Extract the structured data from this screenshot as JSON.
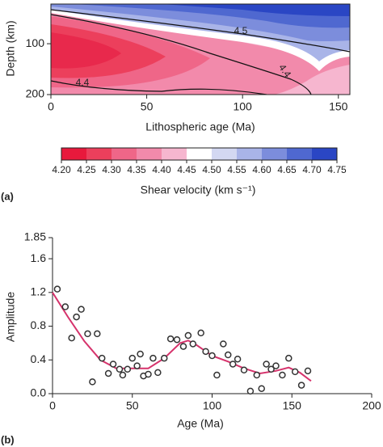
{
  "chart_data": [
    {
      "type": "contour",
      "panel_label": "(a)",
      "xlabel": "Lithospheric age (Ma)",
      "ylabel": "Depth (km)",
      "xlim": [
        0,
        156
      ],
      "xticks": [
        0,
        50,
        100,
        150
      ],
      "ylim": [
        200,
        22
      ],
      "yticks": [
        100,
        200
      ],
      "contour_labels": [
        "4.5",
        "4.4",
        "4.4"
      ],
      "colorbar": {
        "label": "Shear velocity (km s⁻¹)",
        "ticks": [
          {
            "value": 4.2,
            "label": "4.20"
          },
          {
            "value": 4.25,
            "label": "4.25"
          },
          {
            "value": 4.3,
            "label": "4.30"
          },
          {
            "value": 4.35,
            "label": "4.35"
          },
          {
            "value": 4.4,
            "label": "4.40"
          },
          {
            "value": 4.45,
            "label": "4.45"
          },
          {
            "value": 4.5,
            "label": "4.50"
          },
          {
            "value": 4.55,
            "label": "4.55"
          },
          {
            "value": 4.6,
            "label": "4.60"
          },
          {
            "value": 4.65,
            "label": "4.65"
          },
          {
            "value": 4.7,
            "label": "4.70"
          },
          {
            "value": 4.75,
            "label": "4.75"
          }
        ],
        "colors": [
          "#e8193c",
          "#ec3f5c",
          "#ef6688",
          "#f28aab",
          "#f6b6cf",
          "#ffffff",
          "#d3d8f2",
          "#a9b4e8",
          "#7c8ddc",
          "#4f68d0",
          "#2a46c4"
        ]
      }
    },
    {
      "type": "scatter",
      "panel_label": "(b)",
      "xlabel": "Age (Ma)",
      "ylabel": "Amplitude",
      "xlim": [
        0,
        200
      ],
      "xticks": [
        0,
        50,
        100,
        150,
        200
      ],
      "ylim": [
        0,
        1.85
      ],
      "yticks": [
        {
          "value": 0,
          "label": "0.0"
        },
        0.4,
        0.8,
        1.2,
        1.6,
        1.85
      ],
      "x": [
        3,
        8,
        12,
        15,
        18,
        22,
        25,
        28,
        31,
        35,
        38,
        42,
        44,
        47,
        50,
        53,
        55,
        57,
        60,
        63,
        66,
        70,
        74,
        78,
        82,
        85,
        88,
        93,
        96,
        100,
        103,
        107,
        110,
        113,
        116,
        120,
        124,
        128,
        131,
        134,
        137,
        140,
        144,
        148,
        152,
        156,
        160
      ],
      "values": [
        1.24,
        1.03,
        0.66,
        0.91,
        1.0,
        0.71,
        0.14,
        0.71,
        0.42,
        0.24,
        0.35,
        0.29,
        0.22,
        0.29,
        0.42,
        0.33,
        0.47,
        0.21,
        0.23,
        0.42,
        0.25,
        0.42,
        0.65,
        0.64,
        0.56,
        0.69,
        0.59,
        0.72,
        0.5,
        0.45,
        0.22,
        0.59,
        0.46,
        0.35,
        0.41,
        0.28,
        0.03,
        0.22,
        0.06,
        0.35,
        0.29,
        0.33,
        0.22,
        0.42,
        0.26,
        0.1,
        0.27
      ],
      "curve": {
        "color": "#d6336c",
        "x": [
          0,
          10,
          20,
          30,
          40,
          50,
          60,
          70,
          80,
          85,
          90,
          100,
          110,
          120,
          130,
          140,
          148,
          155,
          162
        ],
        "values": [
          1.2,
          0.9,
          0.62,
          0.4,
          0.3,
          0.3,
          0.3,
          0.42,
          0.6,
          0.63,
          0.58,
          0.45,
          0.38,
          0.3,
          0.24,
          0.27,
          0.31,
          0.25,
          0.15
        ]
      }
    }
  ]
}
